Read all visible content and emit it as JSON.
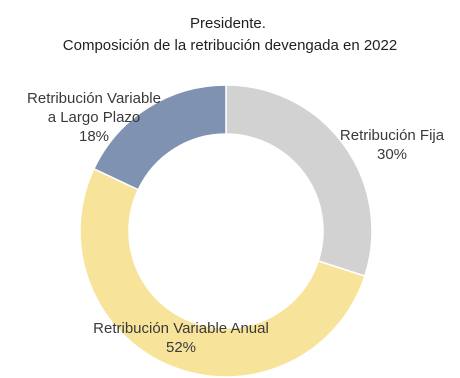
{
  "chart_data": {
    "type": "pie",
    "title": "Presidente.",
    "subtitle": "Composición de la retribución devengada en 2022",
    "slices": [
      {
        "label_lines": [
          "Retribución Fija"
        ],
        "value": 30,
        "value_label": "30%",
        "color": "#d2d2d2"
      },
      {
        "label_lines": [
          "Retribución Variable Anual"
        ],
        "value": 52,
        "value_label": "52%",
        "color": "#f8e39b"
      },
      {
        "label_lines": [
          "Retribución Variable",
          "a Largo Plazo"
        ],
        "value": 18,
        "value_label": "18%",
        "color": "#7f92b1"
      }
    ]
  }
}
